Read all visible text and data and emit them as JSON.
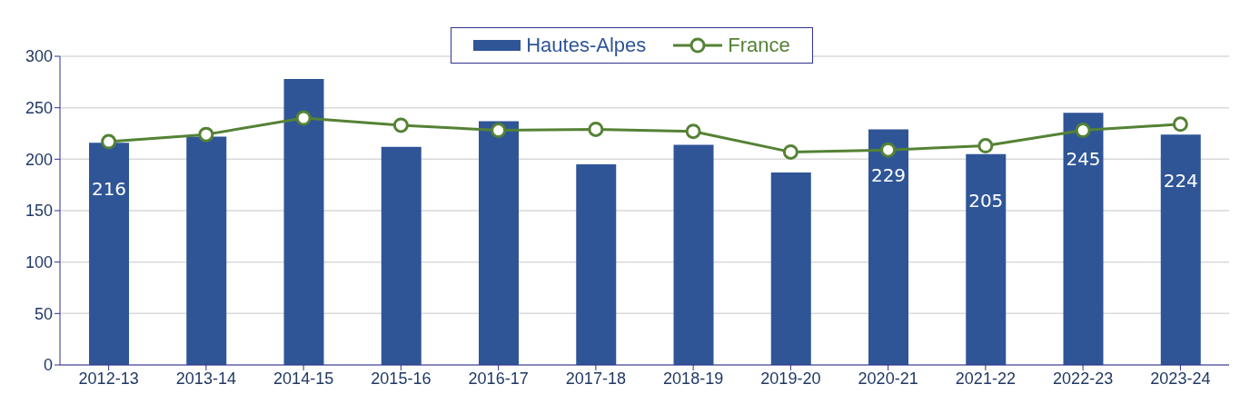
{
  "chart_data": {
    "type": "bar",
    "categories": [
      "2012-13",
      "2013-14",
      "2014-15",
      "2015-16",
      "2016-17",
      "2017-18",
      "2018-19",
      "2019-20",
      "2020-21",
      "2021-22",
      "2022-23",
      "2023-24"
    ],
    "series": [
      {
        "name": "Hautes-Alpes",
        "color": "#2f5597",
        "values": [
          216,
          222,
          278,
          212,
          237,
          195,
          214,
          187,
          229,
          205,
          245,
          224
        ],
        "value_labels": [
          "216",
          null,
          null,
          null,
          null,
          null,
          null,
          null,
          "229",
          "205",
          "245",
          "224"
        ]
      },
      {
        "name": "France",
        "type": "line",
        "color": "#548235",
        "values": [
          217,
          224,
          240,
          233,
          228,
          229,
          227,
          207,
          209,
          213,
          228,
          234
        ]
      }
    ],
    "ylim": [
      0,
      300
    ],
    "yticks": [
      0,
      50,
      100,
      150,
      200,
      250,
      300
    ],
    "grid": "y",
    "legend": "top",
    "marker": "circle",
    "line_style": "solid"
  }
}
